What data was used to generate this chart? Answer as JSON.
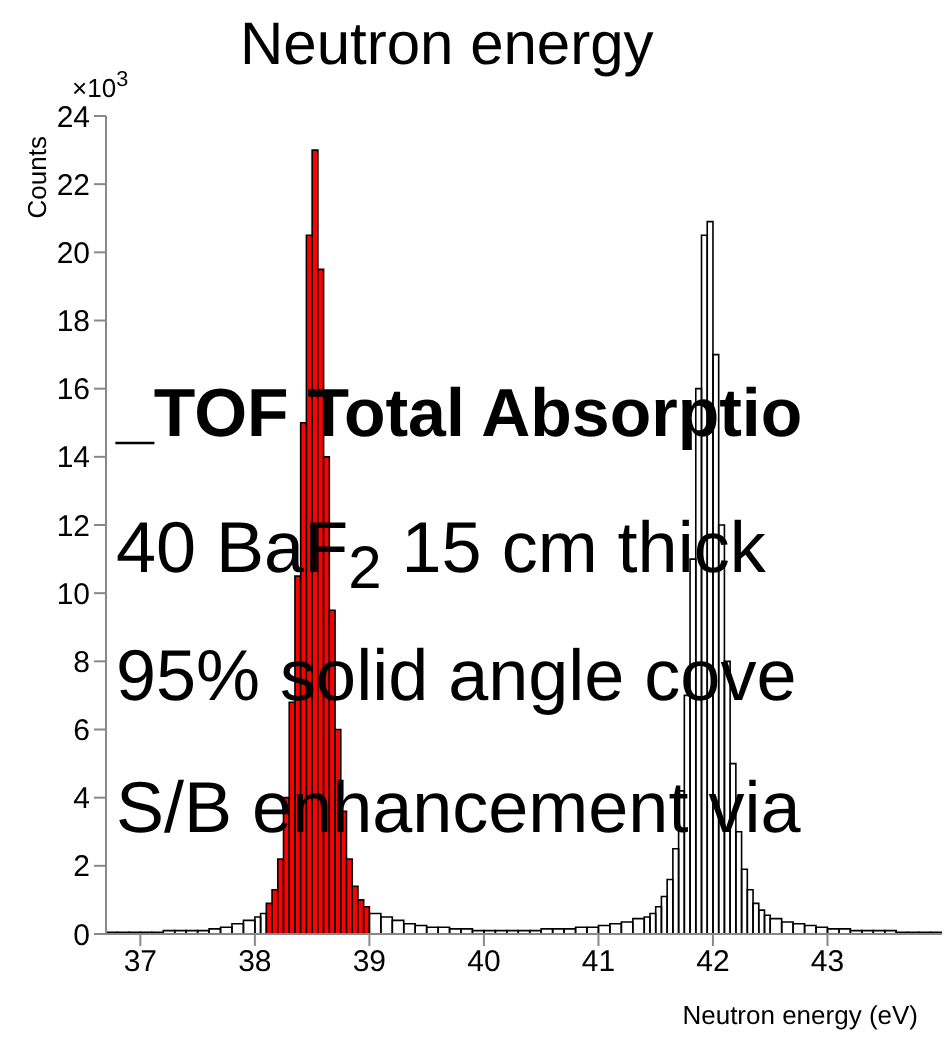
{
  "chart_data": {
    "type": "histogram",
    "title": "Neutron energy",
    "xlabel": "Neutron energy (eV)",
    "ylabel": "Counts",
    "annotations": [
      "×10$^{3}$",
      "_TOF Total Absorptio",
      "40 BaF$_{2}$ 15 cm thick",
      "95% solid angle cove",
      "S/B enhancement via"
    ],
    "bins": [
      36.7,
      36.8,
      36.9,
      37.0,
      37.1,
      37.2,
      37.3,
      37.4,
      37.5,
      37.6,
      37.7,
      37.8,
      37.9,
      38.0,
      38.05,
      38.1,
      38.15,
      38.2,
      38.25,
      38.3,
      38.35,
      38.4,
      38.45,
      38.5,
      38.55,
      38.6,
      38.65,
      38.7,
      38.75,
      38.8,
      38.85,
      38.9,
      38.95,
      39.0,
      39.1,
      39.2,
      39.3,
      39.4,
      39.5,
      39.6,
      39.7,
      39.8,
      39.9,
      40.0,
      40.1,
      40.2,
      40.3,
      40.4,
      40.5,
      40.6,
      40.7,
      40.8,
      40.9,
      41.0,
      41.1,
      41.2,
      41.3,
      41.4,
      41.45,
      41.5,
      41.55,
      41.6,
      41.65,
      41.7,
      41.75,
      41.8,
      41.85,
      41.9,
      41.95,
      42.0,
      42.05,
      42.1,
      42.15,
      42.2,
      42.25,
      42.3,
      42.35,
      42.4,
      42.45,
      42.5,
      42.6,
      42.7,
      42.8,
      42.9,
      43.0,
      43.1,
      43.2,
      43.3,
      43.4,
      43.5,
      43.6,
      43.7,
      43.8,
      43.9,
      44.0
    ],
    "series": [
      {
        "color": "#ff0000",
        "values": [
          0,
          0,
          0,
          0,
          0,
          0,
          0,
          0,
          0,
          0,
          0,
          0,
          0,
          0,
          0,
          0.9,
          1.3,
          2.2,
          4.0,
          6.8,
          10.5,
          15,
          20.5,
          23,
          19.5,
          14,
          9.5,
          6,
          3.6,
          2.2,
          1.4,
          1.0,
          0.8,
          0,
          0,
          0,
          0,
          0,
          0,
          0,
          0,
          0,
          0,
          0,
          0,
          0,
          0,
          0,
          0,
          0,
          0,
          0,
          0,
          0,
          0,
          0,
          0,
          0,
          0,
          0,
          0,
          0,
          0,
          0,
          0,
          0,
          0,
          0,
          0,
          0,
          0,
          0,
          0,
          0,
          0,
          0,
          0,
          0,
          0,
          0,
          0,
          0,
          0,
          0,
          0,
          0,
          0,
          0,
          0,
          0,
          0,
          0,
          0,
          0
        ]
      },
      {
        "color": "#000000",
        "values": [
          0.05,
          0.05,
          0.05,
          0.05,
          0.05,
          0.1,
          0.1,
          0.1,
          0.1,
          0.15,
          0.2,
          0.3,
          0.4,
          0.5,
          0.6,
          null,
          null,
          null,
          null,
          null,
          null,
          null,
          null,
          null,
          null,
          null,
          null,
          null,
          null,
          null,
          null,
          null,
          null,
          0.6,
          0.5,
          0.4,
          0.3,
          0.25,
          0.2,
          0.2,
          0.15,
          0.15,
          0.1,
          0.1,
          0.1,
          0.1,
          0.1,
          0.1,
          0.15,
          0.15,
          0.15,
          0.2,
          0.2,
          0.25,
          0.3,
          0.35,
          0.45,
          0.5,
          0.6,
          0.8,
          1.1,
          1.6,
          2.5,
          4.2,
          7,
          11,
          16,
          20.5,
          20.9,
          17,
          12,
          8,
          5,
          3,
          1.9,
          1.3,
          0.9,
          0.7,
          0.55,
          0.45,
          0.35,
          0.3,
          0.25,
          0.2,
          0.15,
          0.15,
          0.1,
          0.1,
          0.1,
          0.1,
          0.05,
          0.05,
          0.05,
          0.05
        ]
      }
    ],
    "xlim": [
      36.7,
      44.0
    ],
    "xticks": [
      37,
      38,
      39,
      40,
      41,
      42,
      43
    ],
    "ylim": [
      0,
      24
    ],
    "yticks": [
      0,
      2,
      4,
      6,
      8,
      10,
      12,
      14,
      16,
      18,
      20,
      22,
      24
    ],
    "grid": false
  }
}
